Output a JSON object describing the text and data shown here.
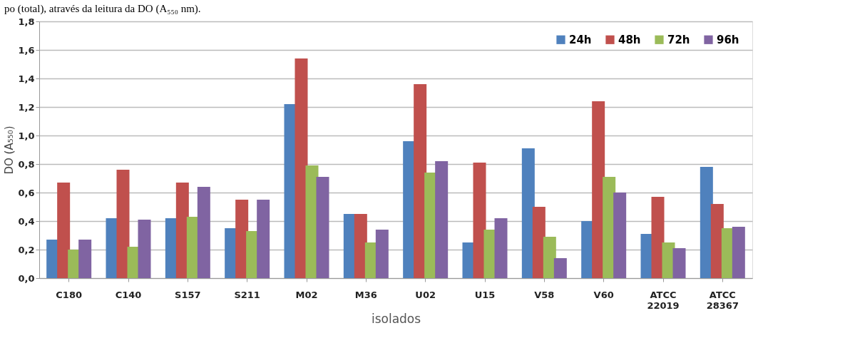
{
  "chart_data": {
    "type": "bar",
    "xlabel": "isolados",
    "ylabel": "DO (A₅₅₀)",
    "annotations": [
      "po (total), através da leitura da DO (A₅₅₀ nm)."
    ],
    "categories": [
      "C180",
      "C140",
      "S157",
      "S211",
      "M02",
      "M36",
      "U02",
      "U15",
      "V58",
      "V60",
      "ATCC 22019",
      "ATCC 28367"
    ],
    "series": [
      {
        "name": "24h",
        "color": "#4f81bd",
        "values": [
          0.27,
          0.42,
          0.42,
          0.35,
          1.22,
          0.45,
          0.96,
          0.25,
          0.91,
          0.4,
          0.31,
          0.78
        ]
      },
      {
        "name": "48h",
        "color": "#c0504d",
        "values": [
          0.67,
          0.76,
          0.67,
          0.55,
          1.54,
          0.45,
          1.36,
          0.81,
          0.5,
          1.24,
          0.57,
          0.52
        ]
      },
      {
        "name": "72h",
        "color": "#9bbb59",
        "values": [
          0.2,
          0.22,
          0.43,
          0.33,
          0.79,
          0.25,
          0.74,
          0.34,
          0.29,
          0.71,
          0.25,
          0.35
        ]
      },
      {
        "name": "96h",
        "color": "#8064a2",
        "values": [
          0.27,
          0.41,
          0.64,
          0.55,
          0.71,
          0.34,
          0.82,
          0.42,
          0.14,
          0.6,
          0.21,
          0.36
        ]
      }
    ],
    "ylim": [
      0,
      1.8
    ],
    "yticks": [
      {
        "value": 0,
        "label": "0,0"
      },
      {
        "value": 0.2,
        "label": "0,2"
      },
      {
        "value": 0.4,
        "label": "0,4"
      },
      {
        "value": 0.6,
        "label": "0,6"
      },
      {
        "value": 0.8,
        "label": "0,8"
      },
      {
        "value": 1.0,
        "label": "1,0"
      },
      {
        "value": 1.2,
        "label": "1,2"
      },
      {
        "value": 1.4,
        "label": "1,4"
      },
      {
        "value": 1.6,
        "label": "1,6"
      },
      {
        "value": 1.8,
        "label": "1,8"
      }
    ],
    "grid": "y",
    "legend": "top right"
  }
}
